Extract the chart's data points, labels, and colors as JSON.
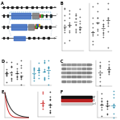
{
  "bg_color": "#ffffff",
  "fig_width": 1.5,
  "fig_height": 1.52,
  "dpi": 100,
  "track_color": "#444444",
  "exon_color": "#222222",
  "blue_color": "#4472C4",
  "teal_color": "#5B9BD5",
  "gray_box_color": "#808080",
  "red_color": "#CC2222",
  "green_color": "#33AA33",
  "dashed_line_color": "#AABBCC"
}
